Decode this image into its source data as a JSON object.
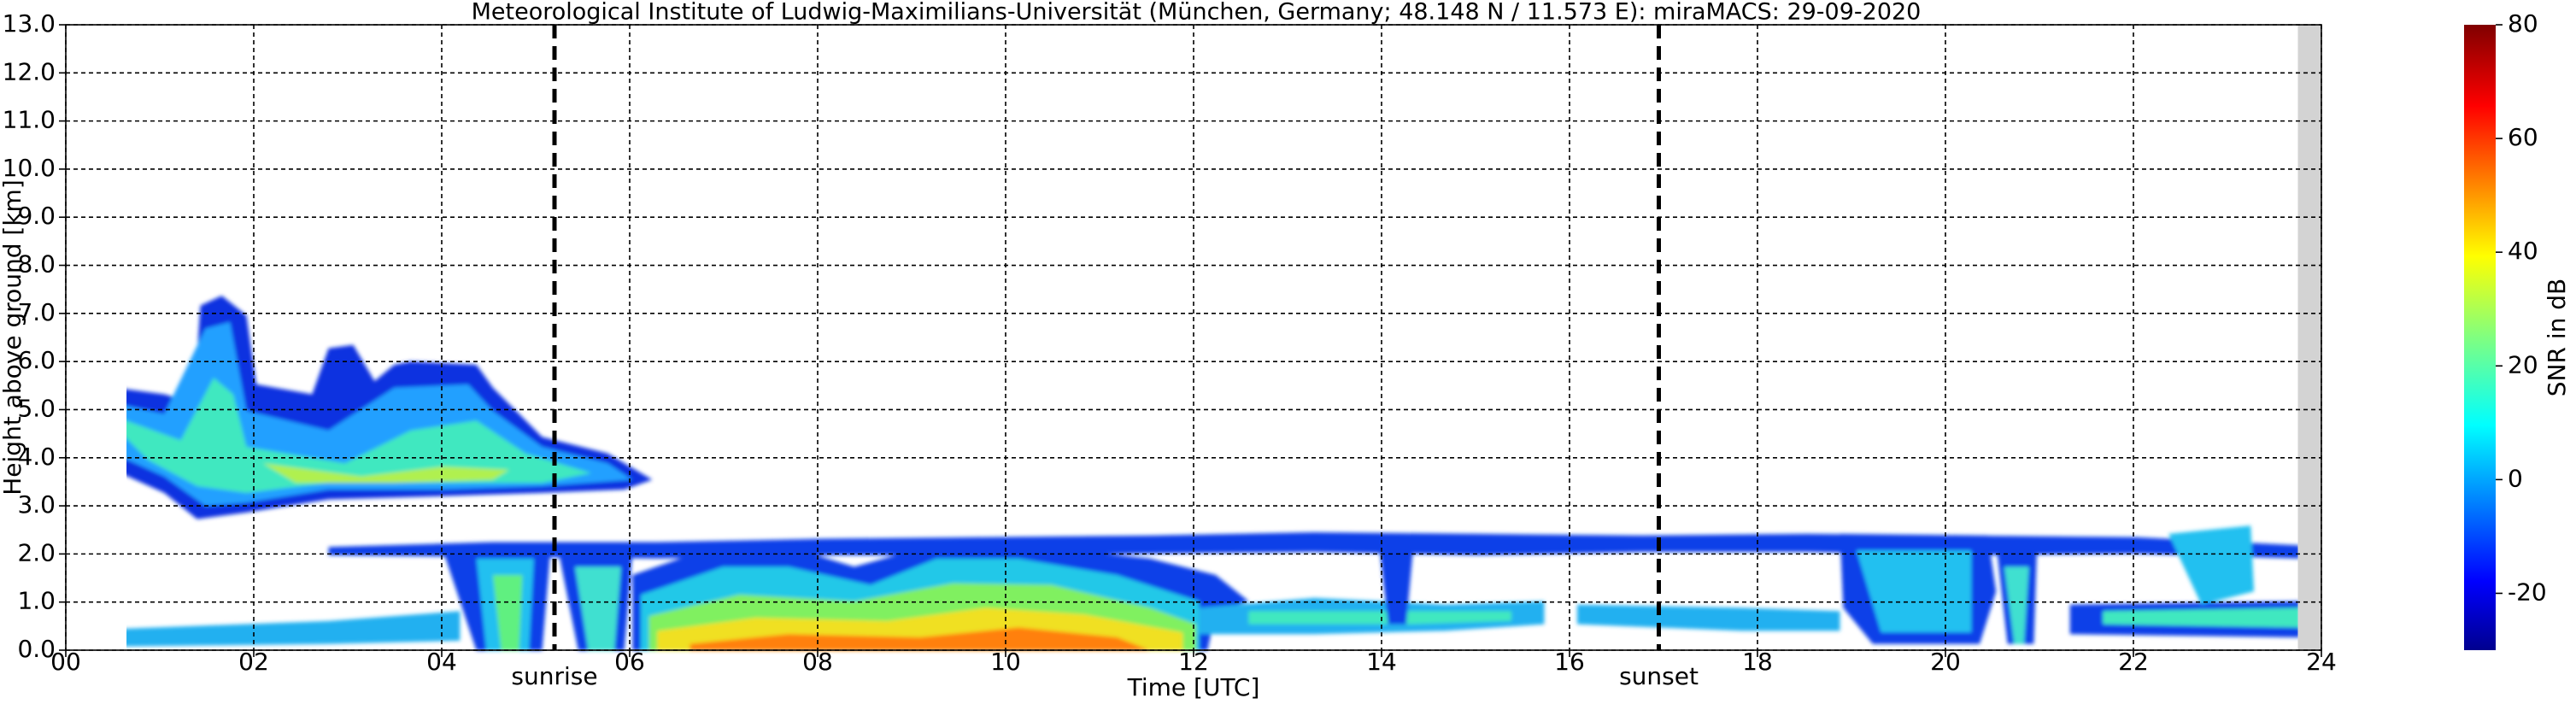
{
  "chart_data": {
    "type": "heatmap",
    "title": "Meteorological Institute of Ludwig-Maximilians-Universität (München, Germany; 48.148 N / 11.573 E):    miraMACS: 29-09-2020",
    "xlabel": "Time [UTC]",
    "ylabel": "Height above ground [km]",
    "xlim": [
      0,
      24
    ],
    "ylim": [
      0,
      13
    ],
    "xticks": [
      {
        "value": 0,
        "label": "00"
      },
      {
        "value": 2,
        "label": "02"
      },
      {
        "value": 4,
        "label": "04"
      },
      {
        "value": 6,
        "label": "06"
      },
      {
        "value": 8,
        "label": "08"
      },
      {
        "value": 10,
        "label": "10"
      },
      {
        "value": 12,
        "label": "12"
      },
      {
        "value": 14,
        "label": "14"
      },
      {
        "value": 16,
        "label": "16"
      },
      {
        "value": 18,
        "label": "18"
      },
      {
        "value": 20,
        "label": "20"
      },
      {
        "value": 22,
        "label": "22"
      },
      {
        "value": 24,
        "label": "24"
      }
    ],
    "yticks": [
      {
        "value": 0,
        "label": "0.0"
      },
      {
        "value": 1,
        "label": "1.0"
      },
      {
        "value": 2,
        "label": "2.0"
      },
      {
        "value": 3,
        "label": "3.0"
      },
      {
        "value": 4,
        "label": "4.0"
      },
      {
        "value": 5,
        "label": "5.0"
      },
      {
        "value": 6,
        "label": "6.0"
      },
      {
        "value": 7,
        "label": "7.0"
      },
      {
        "value": 8,
        "label": "8.0"
      },
      {
        "value": 9,
        "label": "9.0"
      },
      {
        "value": 10,
        "label": "10.0"
      },
      {
        "value": 11,
        "label": "11.0"
      },
      {
        "value": 12,
        "label": "12.0"
      },
      {
        "value": 13,
        "label": "13.0"
      }
    ],
    "grid": true,
    "no_data_from": 23.75,
    "vlines": [
      {
        "x": 5.2,
        "label": "sunrise"
      },
      {
        "x": 16.95,
        "label": "sunset"
      }
    ],
    "colorbar": {
      "label": "SNR in dB",
      "lim": [
        -30,
        80
      ],
      "ticks": [
        -20,
        0,
        20,
        40,
        60,
        80
      ],
      "colormap": "jet"
    }
  }
}
